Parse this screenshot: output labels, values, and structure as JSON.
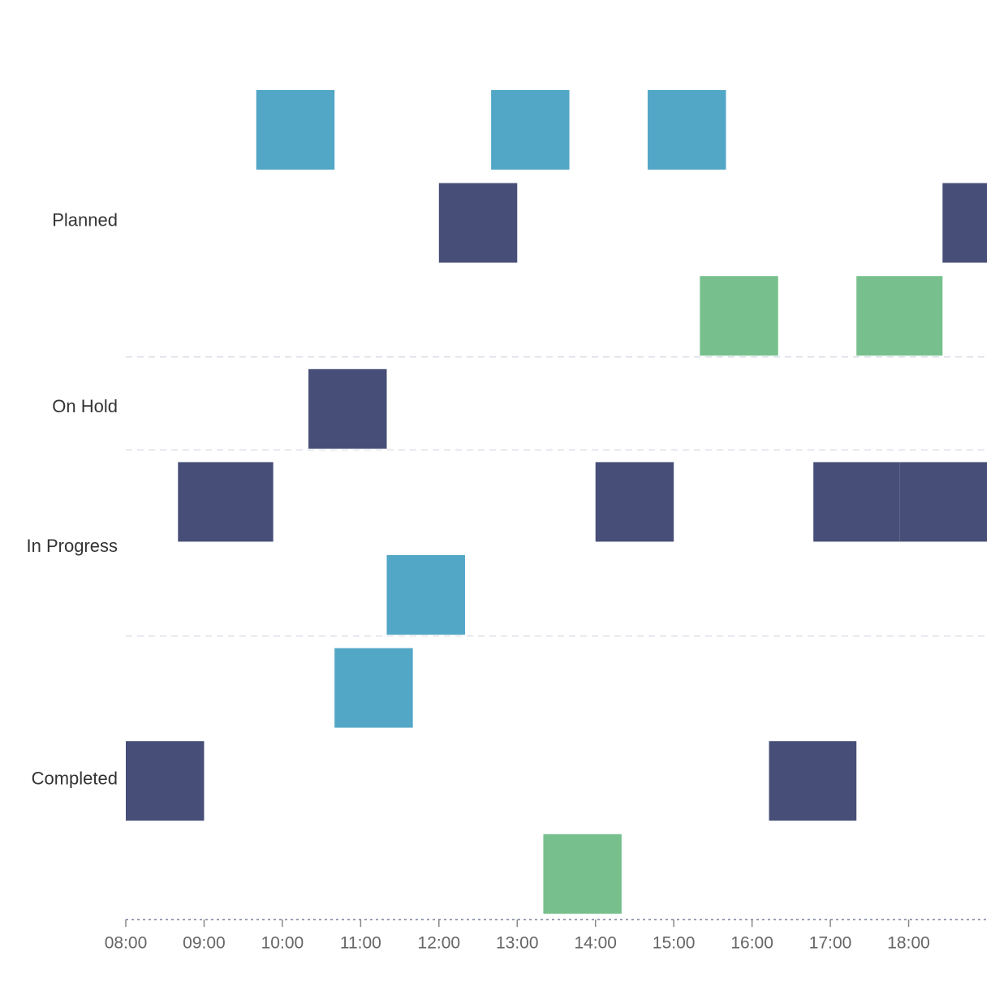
{
  "chart_data": {
    "type": "gantt",
    "title": "",
    "xlabel": "",
    "ylabel": "",
    "x_domain": [
      "08:00",
      "19:00"
    ],
    "x_ticks": [
      "08:00",
      "09:00",
      "10:00",
      "11:00",
      "12:00",
      "13:00",
      "14:00",
      "15:00",
      "16:00",
      "17:00",
      "18:00"
    ],
    "lanes": [
      {
        "name": "Planned",
        "rows": 3
      },
      {
        "name": "On Hold",
        "rows": 1
      },
      {
        "name": "In Progress",
        "rows": 2
      },
      {
        "name": "Completed",
        "rows": 3
      }
    ],
    "colors": {
      "blue": "#52a6c6",
      "navy": "#474f78",
      "green": "#77c08d"
    },
    "tasks": [
      {
        "lane": "Planned",
        "row": 0,
        "start": "09:40",
        "end": "10:40",
        "color": "blue"
      },
      {
        "lane": "Planned",
        "row": 0,
        "start": "12:40",
        "end": "13:40",
        "color": "blue"
      },
      {
        "lane": "Planned",
        "row": 0,
        "start": "14:40",
        "end": "15:40",
        "color": "blue"
      },
      {
        "lane": "Planned",
        "row": 1,
        "start": "12:00",
        "end": "13:00",
        "color": "navy"
      },
      {
        "lane": "Planned",
        "row": 1,
        "start": "18:26",
        "end": "19:00",
        "color": "navy"
      },
      {
        "lane": "Planned",
        "row": 2,
        "start": "15:20",
        "end": "16:20",
        "color": "green"
      },
      {
        "lane": "Planned",
        "row": 2,
        "start": "17:20",
        "end": "18:26",
        "color": "green"
      },
      {
        "lane": "On Hold",
        "row": 0,
        "start": "10:20",
        "end": "11:20",
        "color": "navy"
      },
      {
        "lane": "In Progress",
        "row": 0,
        "start": "08:40",
        "end": "09:53",
        "color": "navy"
      },
      {
        "lane": "In Progress",
        "row": 0,
        "start": "14:00",
        "end": "15:00",
        "color": "navy"
      },
      {
        "lane": "In Progress",
        "row": 0,
        "start": "16:47",
        "end": "17:53",
        "color": "navy"
      },
      {
        "lane": "In Progress",
        "row": 0,
        "start": "17:53",
        "end": "19:00",
        "color": "navy"
      },
      {
        "lane": "In Progress",
        "row": 1,
        "start": "11:20",
        "end": "12:20",
        "color": "blue"
      },
      {
        "lane": "Completed",
        "row": 0,
        "start": "10:40",
        "end": "11:40",
        "color": "blue"
      },
      {
        "lane": "Completed",
        "row": 1,
        "start": "08:00",
        "end": "09:00",
        "color": "navy"
      },
      {
        "lane": "Completed",
        "row": 1,
        "start": "16:13",
        "end": "17:20",
        "color": "navy"
      },
      {
        "lane": "Completed",
        "row": 2,
        "start": "13:20",
        "end": "14:20",
        "color": "green"
      }
    ]
  }
}
